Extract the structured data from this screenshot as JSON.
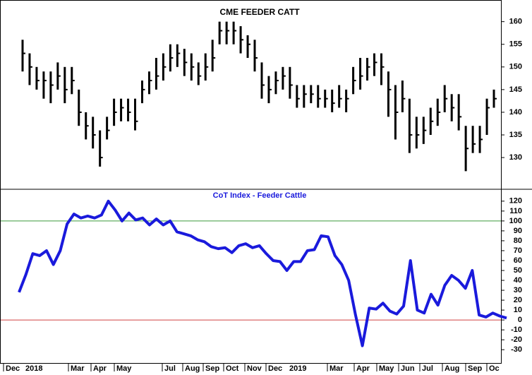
{
  "chart_data": [
    {
      "type": "ohlc",
      "title": "CME FEEDER CATT",
      "color": "#000000",
      "high": [
        156,
        153,
        150,
        149,
        149,
        151,
        150,
        150,
        145,
        140,
        139,
        136,
        139,
        143,
        143,
        143,
        143,
        147,
        149,
        152,
        153,
        155,
        155,
        154,
        153,
        151,
        153,
        156,
        160,
        160,
        160,
        159,
        157,
        156,
        151,
        148,
        149,
        150,
        150,
        146,
        146,
        146,
        146,
        145,
        145,
        146,
        145,
        150,
        152,
        152,
        153,
        153,
        149,
        146,
        147,
        143,
        139,
        139,
        141,
        143,
        146,
        144,
        144,
        137,
        137,
        137,
        143,
        145
      ],
      "low": [
        149,
        146,
        145,
        143,
        142,
        145,
        142,
        144,
        137,
        134,
        132,
        128,
        134,
        137,
        138,
        138,
        136,
        142,
        144,
        145,
        147,
        149,
        150,
        148,
        147,
        146,
        147,
        149,
        155,
        155,
        155,
        153,
        152,
        149,
        143,
        142,
        144,
        145,
        143,
        141,
        141,
        142,
        141,
        141,
        140,
        141,
        140,
        144,
        145,
        147,
        148,
        146,
        139,
        134,
        140,
        131,
        132,
        133,
        135,
        137,
        140,
        138,
        136,
        127,
        131,
        131,
        135,
        141
      ],
      "close": [
        153,
        150,
        147,
        147,
        146,
        148,
        145,
        147,
        140,
        137,
        135,
        130,
        136,
        140,
        141,
        140,
        138,
        145,
        147,
        148,
        150,
        152,
        153,
        151,
        150,
        148,
        150,
        152,
        158,
        158,
        158,
        156,
        155,
        152,
        146,
        145,
        147,
        148,
        146,
        143,
        144,
        144,
        143,
        143,
        142,
        143,
        143,
        147,
        148,
        150,
        151,
        150,
        145,
        140,
        143,
        135,
        135,
        136,
        138,
        140,
        143,
        141,
        139,
        132,
        133,
        134,
        141,
        143
      ],
      "ylim": [
        123,
        164
      ],
      "yticks": [
        130,
        135,
        140,
        145,
        150,
        155,
        160
      ]
    },
    {
      "type": "line",
      "title": "CoT Index - Feeder Cattle",
      "color": "#1a1adc",
      "values": [
        28,
        46,
        67,
        65,
        70,
        56,
        70,
        97,
        107,
        103,
        105,
        103,
        106,
        120,
        111,
        100,
        108,
        101,
        103,
        96,
        102,
        96,
        100,
        89,
        87,
        85,
        81,
        79,
        74,
        72,
        73,
        68,
        75,
        77,
        73,
        75,
        67,
        60,
        59,
        50,
        59,
        59,
        70,
        71,
        85,
        84,
        65,
        56,
        40,
        5,
        -26,
        12,
        11,
        17,
        9,
        6,
        14,
        60,
        10,
        7,
        26,
        15,
        35,
        45,
        40,
        32,
        50,
        5,
        3,
        7,
        4,
        2
      ],
      "ylim": [
        -42,
        132
      ],
      "yticks": [
        120,
        110,
        100,
        90,
        80,
        70,
        60,
        50,
        40,
        30,
        20,
        10,
        0,
        -10,
        -20,
        -30
      ],
      "hlines": [
        {
          "value": 100,
          "color": "#3c9a3c"
        },
        {
          "value": 0,
          "color": "#d04040"
        }
      ],
      "x_labels": [
        "Dec",
        "2018",
        "Mar",
        "Apr",
        "May",
        "Jul",
        "Aug",
        "Sep",
        "Oct",
        "Nov",
        "Dec",
        "2019",
        "Mar",
        "Apr",
        "May",
        "Jun",
        "Jul",
        "Aug",
        "Sep",
        "Oc"
      ]
    }
  ]
}
